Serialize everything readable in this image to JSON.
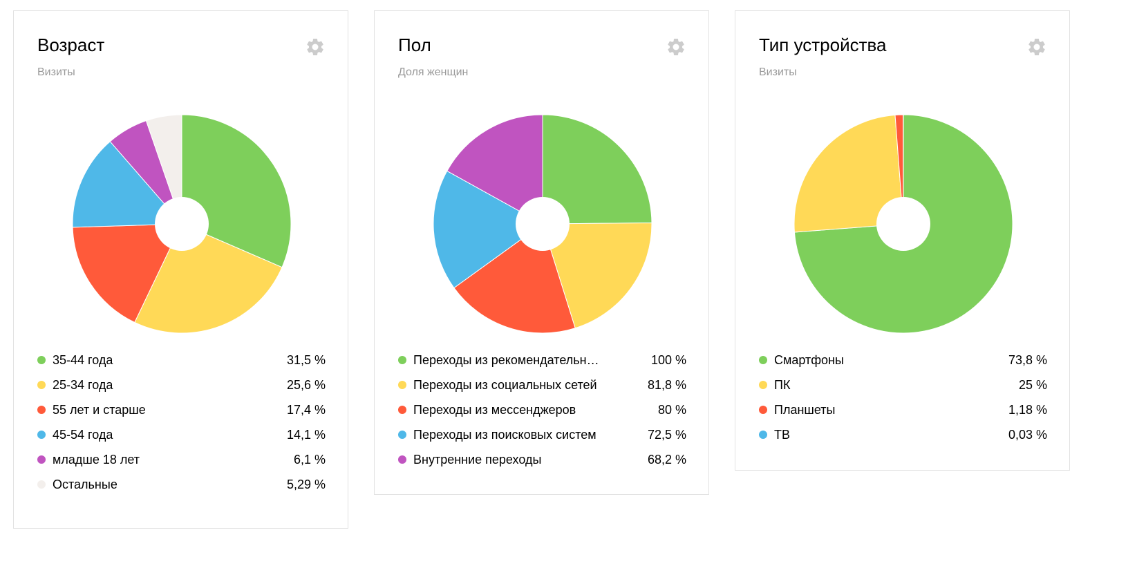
{
  "chart_data": [
    {
      "type": "pie",
      "title": "Возраст",
      "subtitle": "Визиты",
      "slices": [
        {
          "label": "35-44 года",
          "value": 31.5,
          "display": "31,5 %",
          "color": "#7ecf5b"
        },
        {
          "label": "25-34 года",
          "value": 25.6,
          "display": "25,6 %",
          "color": "#ffd957"
        },
        {
          "label": "55 лет и старше",
          "value": 17.4,
          "display": "17,4 %",
          "color": "#ff5a3a"
        },
        {
          "label": "45-54 года",
          "value": 14.1,
          "display": "14,1 %",
          "color": "#4fb8e8"
        },
        {
          "label": "младше 18 лет",
          "value": 6.1,
          "display": "6,1 %",
          "color": "#c054c0"
        },
        {
          "label": "Остальные",
          "value": 5.29,
          "display": "5,29 %",
          "color": "#f3efec"
        }
      ]
    },
    {
      "type": "pie",
      "title": "Пол",
      "subtitle": "Доля женщин",
      "slices": [
        {
          "label": "Переходы из рекомендательн…",
          "value": 100,
          "display": "100 %",
          "color": "#7ecf5b"
        },
        {
          "label": "Переходы из социальных сетей",
          "value": 81.8,
          "display": "81,8 %",
          "color": "#ffd957"
        },
        {
          "label": "Переходы из мессенджеров",
          "value": 80,
          "display": "80 %",
          "color": "#ff5a3a"
        },
        {
          "label": "Переходы из поисковых систем",
          "value": 72.5,
          "display": "72,5 %",
          "color": "#4fb8e8"
        },
        {
          "label": "Внутренние переходы",
          "value": 68.2,
          "display": "68,2 %",
          "color": "#c054c0"
        }
      ]
    },
    {
      "type": "pie",
      "title": "Тип устройства",
      "subtitle": "Визиты",
      "slices": [
        {
          "label": "Смартфоны",
          "value": 73.8,
          "display": "73,8 %",
          "color": "#7ecf5b"
        },
        {
          "label": "ПК",
          "value": 25,
          "display": "25 %",
          "color": "#ffd957"
        },
        {
          "label": "Планшеты",
          "value": 1.18,
          "display": "1,18 %",
          "color": "#ff5a3a"
        },
        {
          "label": "ТВ",
          "value": 0.03,
          "display": "0,03 %",
          "color": "#4fb8e8"
        }
      ]
    }
  ],
  "icons": {
    "settings": "gear-icon"
  },
  "colors": {
    "card_border": "#e2e2e2",
    "subtitle": "#999999",
    "gear": "#cccccc"
  }
}
